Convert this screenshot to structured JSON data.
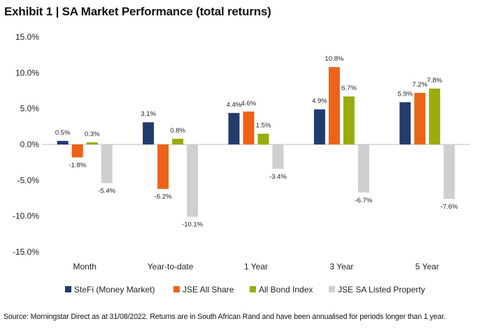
{
  "title": "Exhibit 1 | SA Market Performance (total returns)",
  "source": "Source: Morningstar Direct as at 31/08/2022. Returns are in South African Rand and have been annualised for periods longer than 1 year.",
  "chart_data": {
    "type": "bar",
    "categories": [
      "Month",
      "Year-to-date",
      "1 Year",
      "3 Year",
      "5 Year"
    ],
    "series": [
      {
        "name": "SteFi (Money Market)",
        "color": "#233c6e",
        "values": [
          0.5,
          3.1,
          4.4,
          4.9,
          5.9
        ],
        "labels": [
          "0.5%",
          "3.1%",
          "4.4%",
          "4.9%",
          "5.9%"
        ]
      },
      {
        "name": "JSE All Share",
        "color": "#ec6318",
        "values": [
          -1.8,
          -6.2,
          4.6,
          10.8,
          7.2
        ],
        "labels": [
          "-1.8%",
          "-6.2%",
          "4.6%",
          "10.8%",
          "7.2%"
        ]
      },
      {
        "name": "All Bond Index",
        "color": "#9aab0c",
        "values": [
          0.3,
          0.8,
          1.5,
          6.7,
          7.8
        ],
        "labels": [
          "0.3%",
          "0.8%",
          "1.5%",
          "6.7%",
          "7.8%"
        ]
      },
      {
        "name": "JSE SA Listed Property",
        "color": "#cfcfcf",
        "values": [
          -5.4,
          -10.1,
          -3.4,
          -6.7,
          -7.6
        ],
        "labels": [
          "-5.4%",
          "-10.1%",
          "-3.4%",
          "-6.7%",
          "-7.6%"
        ]
      }
    ],
    "ylim": [
      -15,
      15
    ],
    "yticks": [
      15,
      10,
      5,
      0,
      -5,
      -10,
      -15
    ],
    "ytick_labels": [
      "15.0%",
      "10.0%",
      "5.0%",
      "0.0%",
      "-5.0%",
      "-10.0%",
      "-15.0%"
    ],
    "xlabel": "",
    "ylabel": "",
    "grid": false,
    "legend": "bottom"
  }
}
